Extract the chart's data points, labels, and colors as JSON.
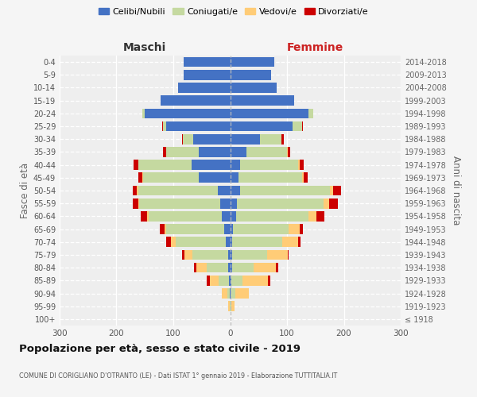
{
  "age_groups": [
    "100+",
    "95-99",
    "90-94",
    "85-89",
    "80-84",
    "75-79",
    "70-74",
    "65-69",
    "60-64",
    "55-59",
    "50-54",
    "45-49",
    "40-44",
    "35-39",
    "30-34",
    "25-29",
    "20-24",
    "15-19",
    "10-14",
    "5-9",
    "0-4"
  ],
  "birth_years": [
    "≤ 1918",
    "1919-1923",
    "1924-1928",
    "1929-1933",
    "1934-1938",
    "1939-1943",
    "1944-1948",
    "1949-1953",
    "1954-1958",
    "1959-1963",
    "1964-1968",
    "1969-1973",
    "1974-1978",
    "1979-1983",
    "1984-1988",
    "1989-1993",
    "1994-1998",
    "1999-2003",
    "2004-2008",
    "2009-2013",
    "2014-2018"
  ],
  "male": {
    "celibi": [
      0,
      0,
      1,
      2,
      3,
      4,
      8,
      10,
      15,
      18,
      22,
      55,
      68,
      55,
      65,
      112,
      150,
      122,
      92,
      82,
      82
    ],
    "coniugati": [
      0,
      1,
      4,
      18,
      38,
      62,
      88,
      102,
      128,
      142,
      140,
      98,
      93,
      58,
      18,
      6,
      4,
      0,
      0,
      0,
      0
    ],
    "vedovi": [
      0,
      2,
      9,
      16,
      18,
      14,
      8,
      4,
      3,
      2,
      2,
      1,
      1,
      0,
      0,
      0,
      0,
      0,
      0,
      0,
      0
    ],
    "divorziati": [
      0,
      0,
      0,
      5,
      4,
      4,
      8,
      8,
      12,
      10,
      8,
      8,
      8,
      5,
      2,
      2,
      0,
      0,
      0,
      0,
      0
    ]
  },
  "female": {
    "nubili": [
      0,
      0,
      1,
      2,
      3,
      3,
      4,
      5,
      10,
      12,
      18,
      14,
      18,
      28,
      52,
      110,
      138,
      112,
      82,
      72,
      78
    ],
    "coniugate": [
      0,
      2,
      8,
      20,
      38,
      62,
      88,
      98,
      128,
      152,
      158,
      112,
      102,
      72,
      38,
      16,
      8,
      0,
      0,
      0,
      0
    ],
    "vedove": [
      0,
      5,
      24,
      44,
      40,
      36,
      28,
      20,
      14,
      10,
      5,
      3,
      2,
      1,
      0,
      0,
      0,
      0,
      0,
      0,
      0
    ],
    "divorziate": [
      0,
      0,
      0,
      5,
      3,
      2,
      4,
      5,
      14,
      16,
      14,
      8,
      8,
      4,
      4,
      2,
      0,
      0,
      0,
      0,
      0
    ]
  },
  "colors": {
    "celibi": "#4472C4",
    "coniugati": "#C5D9A0",
    "vedovi": "#FFCC77",
    "divorziati": "#CC0000"
  },
  "legend_labels": [
    "Celibi/Nubili",
    "Coniugati/e",
    "Vedovi/e",
    "Divorziati/e"
  ],
  "title": "Popolazione per età, sesso e stato civile - 2019",
  "subtitle": "COMUNE DI CORIGLIANO D'OTRANTO (LE) - Dati ISTAT 1° gennaio 2019 - Elaborazione TUTTITALIA.IT",
  "xlabel_left": "Maschi",
  "xlabel_right": "Femmine",
  "ylabel_left": "Fasce di età",
  "ylabel_right": "Anni di nascita",
  "xlim": 300,
  "bg_color": "#f5f5f5",
  "plot_bg": "#eeeeee"
}
